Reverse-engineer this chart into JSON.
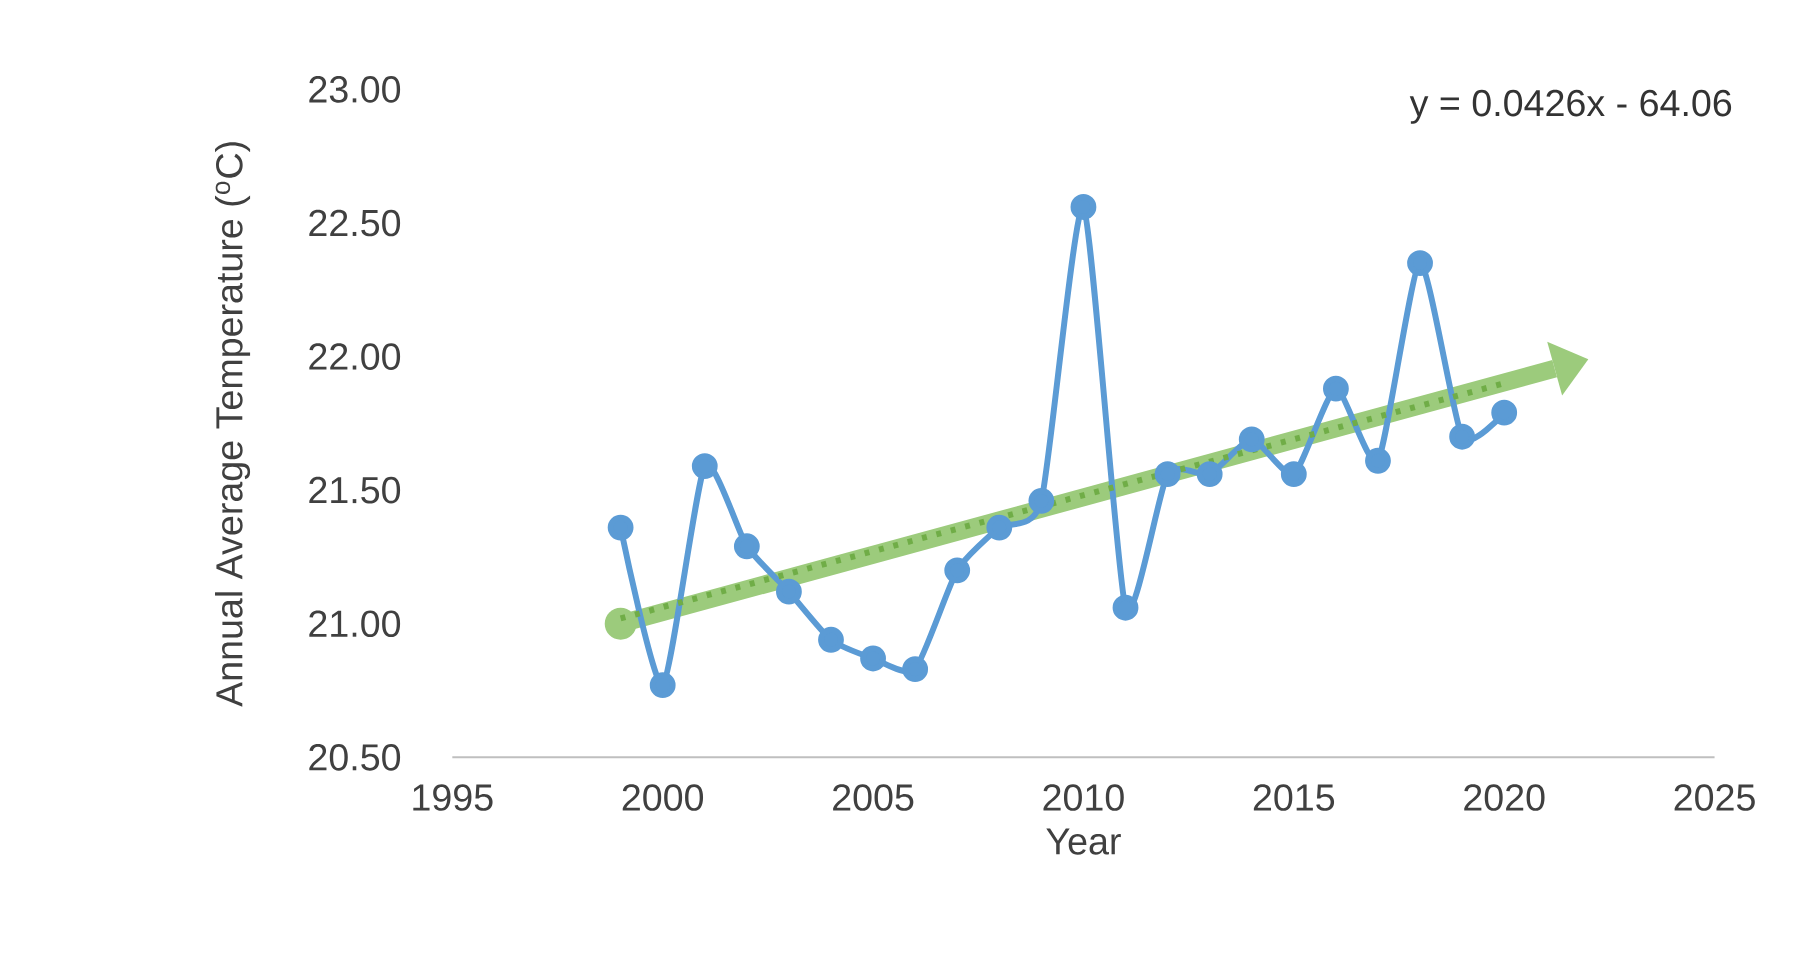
{
  "chart_data": {
    "type": "line",
    "xlabel": "Year",
    "ylabel": "Annual Average Temperature ($^{o}$C)",
    "x": [
      1999,
      2000,
      2001,
      2002,
      2003,
      2004,
      2005,
      2006,
      2007,
      2008,
      2009,
      2010,
      2011,
      2012,
      2013,
      2014,
      2015,
      2016,
      2017,
      2018,
      2019,
      2020
    ],
    "series": [
      {
        "color": "#5b9bd5",
        "marker": "circle",
        "values": [
          21.36,
          20.77,
          21.59,
          21.29,
          21.12,
          20.94,
          20.87,
          20.83,
          21.2,
          21.36,
          21.46,
          22.56,
          21.06,
          21.56,
          21.56,
          21.69,
          21.56,
          21.88,
          21.61,
          22.35,
          21.7,
          21.79
        ]
      },
      {
        "type": "line",
        "color": "#70ad47",
        "line_style": "dotted",
        "x": [
          1999,
          2020
        ],
        "values": [
          21.02,
          21.9
        ]
      }
    ],
    "annotations": [
      "y = 0.0426x - 64.06"
    ],
    "xlim": [
      1995,
      2025
    ],
    "xticks": [
      1995,
      2000,
      2005,
      2010,
      2015,
      2020,
      2025
    ],
    "ylim": [
      20.5,
      23.0
    ],
    "yticks": [
      {
        "value": 20.5,
        "label": "20.50"
      },
      {
        "value": 21.0,
        "label": "21.00"
      },
      {
        "value": 21.5,
        "label": "21.50"
      },
      {
        "value": 22.0,
        "label": "22.00"
      },
      {
        "value": 22.5,
        "label": "22.50"
      },
      {
        "value": 23.0,
        "label": "23.00"
      }
    ],
    "grid": false,
    "legend": false
  }
}
